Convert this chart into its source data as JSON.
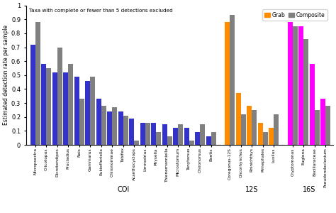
{
  "title": "Taxa with complete or fewer than 5 detections excluded",
  "ylabel": "Estimated detection rate per sample",
  "ylim": [
    0,
    1.0
  ],
  "yticks": [
    0,
    0.1,
    0.2,
    0.3,
    0.4,
    0.5,
    0.6,
    0.7,
    0.8,
    0.9,
    1
  ],
  "section_labels": [
    "COI",
    "12S",
    "16S"
  ],
  "COI": {
    "taxa": [
      "Micropsectra",
      "Cricotopus",
      "Dicrotendipes",
      "Procladius",
      "Nais",
      "Gammarus",
      "Eukiefferiella",
      "Chironominae",
      "Tubifex",
      "Acanthocyclops",
      "Limnodrius",
      "Physella",
      "Thienemanniella",
      "Microstomum",
      "Tanytarsus",
      "Chironomus",
      "Baetis"
    ],
    "grab": [
      0.72,
      0.58,
      0.52,
      0.52,
      0.49,
      0.46,
      0.33,
      0.24,
      0.24,
      0.19,
      0.16,
      0.16,
      0.15,
      0.12,
      0.12,
      0.09,
      0.06
    ],
    "composite": [
      0.88,
      0.55,
      0.7,
      0.58,
      0.33,
      0.49,
      0.28,
      0.27,
      0.21,
      0.03,
      0.16,
      0.09,
      0.06,
      0.15,
      0.03,
      0.15,
      0.09
    ],
    "grab_color": "#3333CC",
    "composite_color": "#808080"
  },
  "12S": {
    "taxa": [
      "Coregonus-12S",
      "Oncorhynchus",
      "Rhinichthys",
      "Pimephales",
      "Luxilus"
    ],
    "grab": [
      0.88,
      0.37,
      0.28,
      0.16,
      0.12
    ],
    "composite": [
      0.93,
      0.22,
      0.25,
      0.09,
      0.22
    ],
    "grab_color": "#FF8C00",
    "composite_color": "#808080"
  },
  "16S": {
    "taxa": [
      "Cryptomonas",
      "Euglena",
      "Bacillaraceae",
      "Pseudendoclonium"
    ],
    "grab": [
      0.88,
      0.85,
      0.58,
      0.33
    ],
    "composite": [
      0.85,
      0.76,
      0.25,
      0.28
    ],
    "grab_color": "#FF00FF",
    "composite_color": "#808080"
  }
}
